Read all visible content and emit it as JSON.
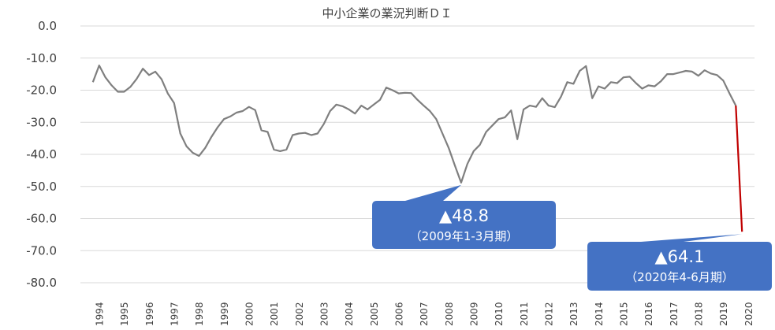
{
  "chart_data": {
    "type": "line",
    "title": "中小企業の業況判断ＤＩ",
    "xlabel": "",
    "ylabel": "",
    "ylim": [
      -80,
      0
    ],
    "xlim": [
      1994,
      2020.5
    ],
    "yticks": [
      0,
      -10,
      -20,
      -30,
      -40,
      -50,
      -60,
      -70,
      -80
    ],
    "ytick_labels": [
      "0.0",
      "-10.0",
      "-20.0",
      "-30.0",
      "-40.0",
      "-50.0",
      "-60.0",
      "-70.0",
      "-80.0"
    ],
    "xtick_labels": [
      "1994",
      "1995",
      "1996",
      "1997",
      "1998",
      "1999",
      "2000",
      "2001",
      "2002",
      "2003",
      "2004",
      "2005",
      "2006",
      "2007",
      "2008",
      "2009",
      "2010",
      "2011",
      "2012",
      "2013",
      "2014",
      "2015",
      "2016",
      "2017",
      "2018",
      "2019",
      "2020"
    ],
    "grid": true,
    "legend": "none",
    "colors": {
      "main": "#7f7f7f",
      "latest": "#c00000",
      "callout": "#4472c4",
      "grid": "#d9d9d9"
    },
    "series": [
      {
        "color": "#7f7f7f",
        "points": [
          [
            1994.0,
            -17.5
          ],
          [
            1994.25,
            -12.3
          ],
          [
            1994.5,
            -16.0
          ],
          [
            1994.75,
            -18.5
          ],
          [
            1995.0,
            -20.5
          ],
          [
            1995.25,
            -20.5
          ],
          [
            1995.5,
            -19.0
          ],
          [
            1995.75,
            -16.5
          ],
          [
            1996.0,
            -13.3
          ],
          [
            1996.25,
            -15.3
          ],
          [
            1996.5,
            -14.2
          ],
          [
            1996.75,
            -16.6
          ],
          [
            1997.0,
            -21.0
          ],
          [
            1997.25,
            -24.0
          ],
          [
            1997.5,
            -33.5
          ],
          [
            1997.75,
            -37.5
          ],
          [
            1998.0,
            -39.5
          ],
          [
            1998.25,
            -40.5
          ],
          [
            1998.5,
            -38.0
          ],
          [
            1998.75,
            -34.5
          ],
          [
            1999.0,
            -31.5
          ],
          [
            1999.25,
            -29.0
          ],
          [
            1999.5,
            -28.2
          ],
          [
            1999.75,
            -27.0
          ],
          [
            2000.0,
            -26.5
          ],
          [
            2000.25,
            -25.2
          ],
          [
            2000.5,
            -26.2
          ],
          [
            2000.75,
            -32.5
          ],
          [
            2001.0,
            -33.0
          ],
          [
            2001.25,
            -38.5
          ],
          [
            2001.5,
            -39.0
          ],
          [
            2001.75,
            -38.5
          ],
          [
            2002.0,
            -34.0
          ],
          [
            2002.25,
            -33.5
          ],
          [
            2002.5,
            -33.3
          ],
          [
            2002.75,
            -34.0
          ],
          [
            2003.0,
            -33.5
          ],
          [
            2003.25,
            -30.5
          ],
          [
            2003.5,
            -26.5
          ],
          [
            2003.75,
            -24.5
          ],
          [
            2004.0,
            -25.0
          ],
          [
            2004.25,
            -26.0
          ],
          [
            2004.5,
            -27.3
          ],
          [
            2004.75,
            -24.8
          ],
          [
            2005.0,
            -26.0
          ],
          [
            2005.25,
            -24.5
          ],
          [
            2005.5,
            -23.0
          ],
          [
            2005.75,
            -19.2
          ],
          [
            2006.0,
            -20.0
          ],
          [
            2006.25,
            -21.0
          ],
          [
            2006.5,
            -20.8
          ],
          [
            2006.75,
            -20.9
          ],
          [
            2007.0,
            -23.0
          ],
          [
            2007.25,
            -24.8
          ],
          [
            2007.5,
            -26.5
          ],
          [
            2007.75,
            -29.0
          ],
          [
            2008.0,
            -33.5
          ],
          [
            2008.25,
            -38.0
          ],
          [
            2008.5,
            -43.5
          ],
          [
            2008.75,
            -48.8
          ],
          [
            2009.0,
            -43.0
          ],
          [
            2009.25,
            -39.0
          ],
          [
            2009.5,
            -37.0
          ],
          [
            2009.75,
            -33.0
          ],
          [
            2010.0,
            -31.0
          ],
          [
            2010.25,
            -29.0
          ],
          [
            2010.5,
            -28.5
          ],
          [
            2010.75,
            -26.3
          ],
          [
            2011.0,
            -35.3
          ],
          [
            2011.25,
            -26.0
          ],
          [
            2011.5,
            -24.8
          ],
          [
            2011.75,
            -25.2
          ],
          [
            2012.0,
            -22.5
          ],
          [
            2012.25,
            -24.8
          ],
          [
            2012.5,
            -25.3
          ],
          [
            2012.75,
            -22.0
          ],
          [
            2013.0,
            -17.5
          ],
          [
            2013.25,
            -18.0
          ],
          [
            2013.5,
            -14.0
          ],
          [
            2013.75,
            -12.5
          ],
          [
            2014.0,
            -22.5
          ],
          [
            2014.25,
            -18.8
          ],
          [
            2014.5,
            -19.5
          ],
          [
            2014.75,
            -17.5
          ],
          [
            2015.0,
            -17.8
          ],
          [
            2015.25,
            -16.0
          ],
          [
            2015.5,
            -15.8
          ],
          [
            2015.75,
            -17.8
          ],
          [
            2016.0,
            -19.5
          ],
          [
            2016.25,
            -18.5
          ],
          [
            2016.5,
            -18.8
          ],
          [
            2016.75,
            -17.2
          ],
          [
            2017.0,
            -15.0
          ],
          [
            2017.25,
            -15.0
          ],
          [
            2017.5,
            -14.5
          ],
          [
            2017.75,
            -14.0
          ],
          [
            2018.0,
            -14.2
          ],
          [
            2018.25,
            -15.5
          ],
          [
            2018.5,
            -13.8
          ],
          [
            2018.75,
            -14.8
          ],
          [
            2019.0,
            -15.3
          ],
          [
            2019.25,
            -17.0
          ],
          [
            2019.5,
            -21.0
          ],
          [
            2019.75,
            -24.8
          ]
        ]
      },
      {
        "color": "#c00000",
        "points": [
          [
            2019.75,
            -24.8
          ],
          [
            2020.0,
            -64.1
          ]
        ]
      }
    ],
    "annotations": [
      {
        "value": "▲48.8",
        "date": "（2009年1-3月期）",
        "x": 2008.75,
        "y": -48.8
      },
      {
        "value": "▲64.1",
        "date": "（2020年4-6月期）",
        "x": 2020.0,
        "y": -64.1
      }
    ]
  }
}
